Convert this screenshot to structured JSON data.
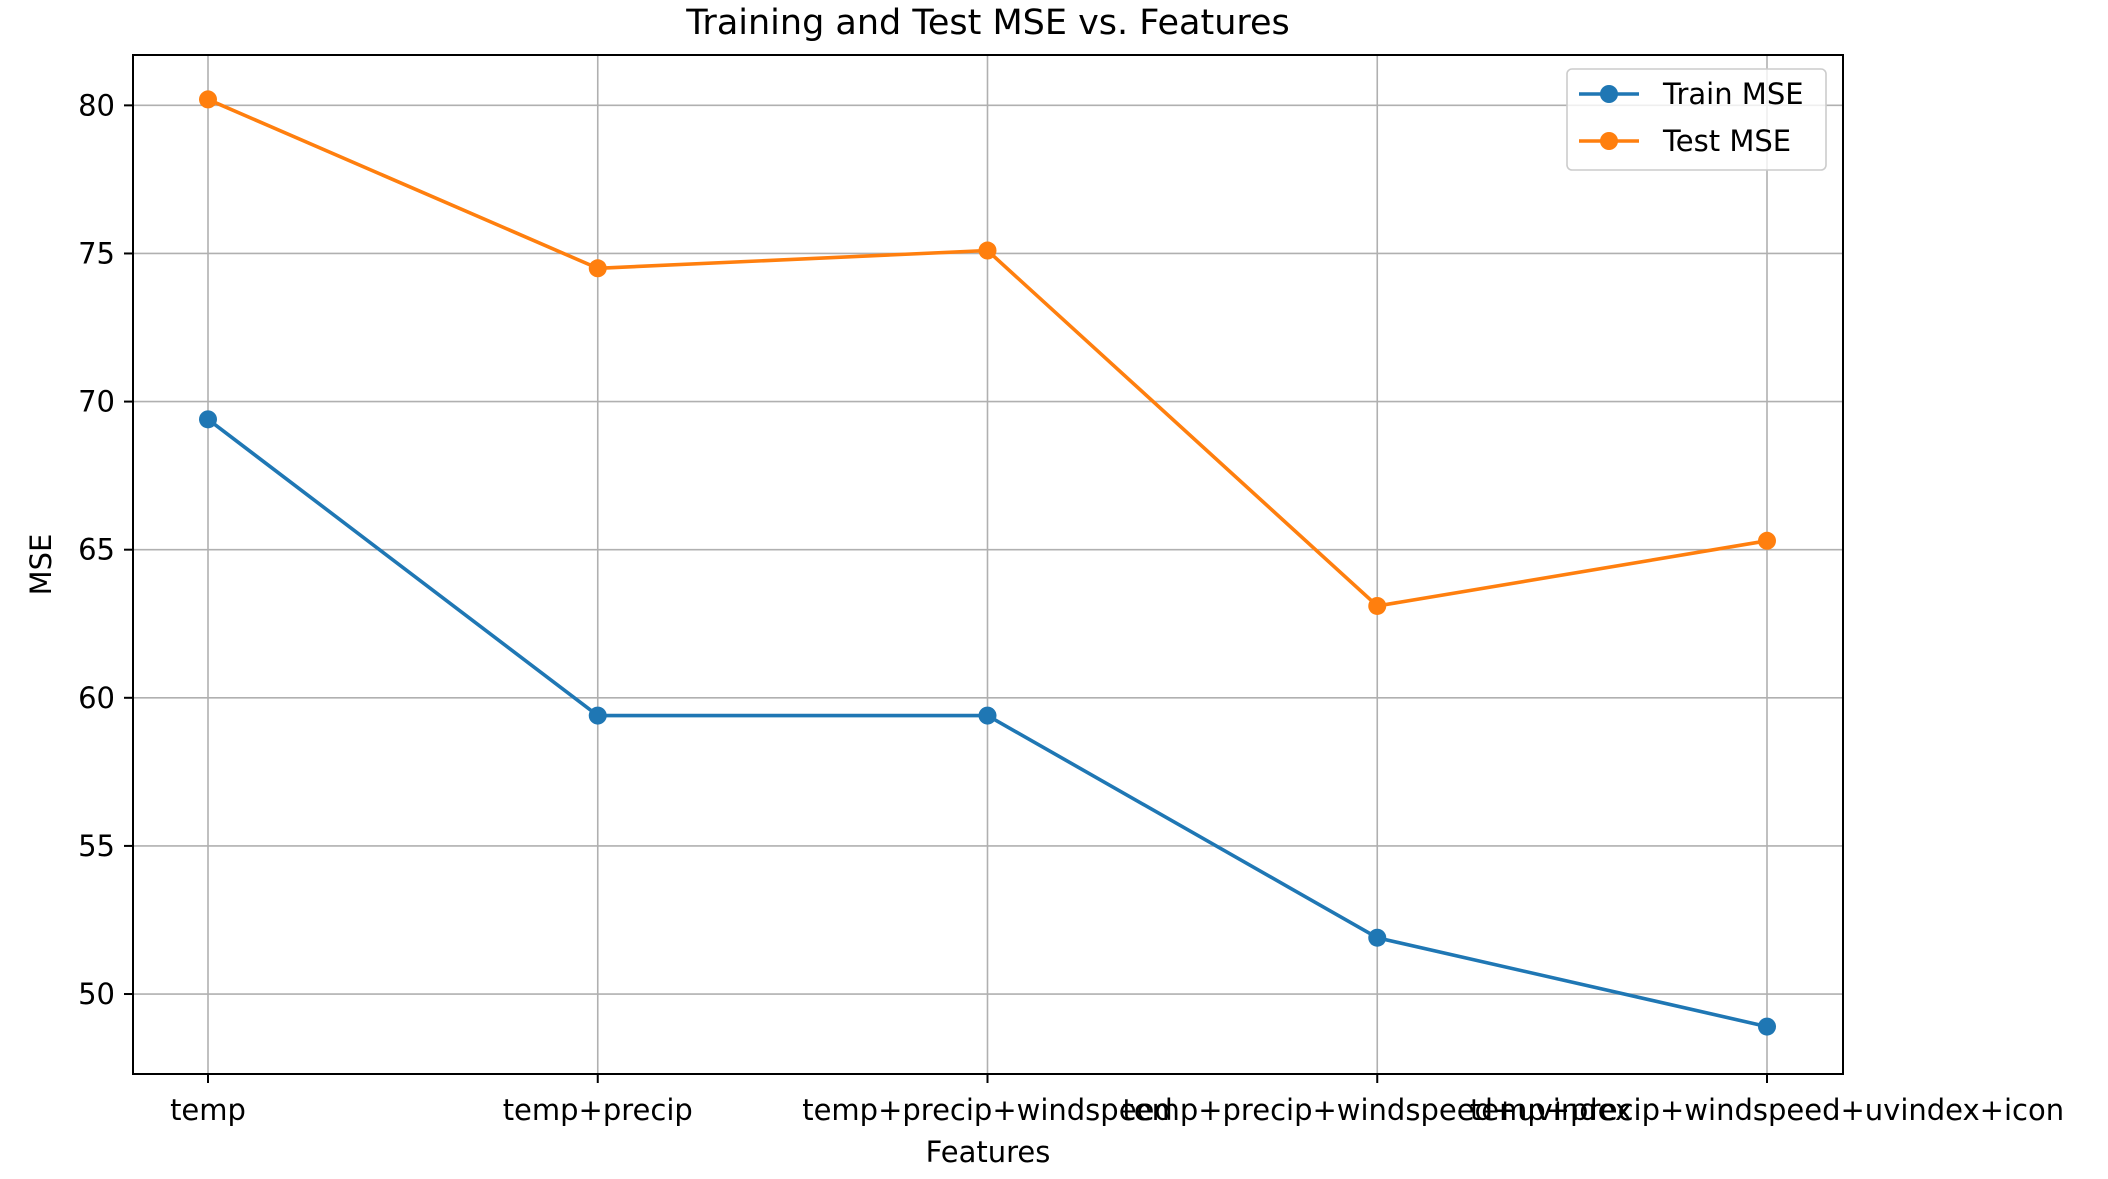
{
  "chart_data": {
    "type": "line",
    "title": "Training and Test MSE vs. Features",
    "xlabel": "Features",
    "ylabel": "MSE",
    "categories": [
      "temp",
      "temp+precip",
      "temp+precip+windspeed",
      "temp+precip+windspeed+uvindex",
      "temp+precip+windspeed+uvindex+icon"
    ],
    "yticks": [
      50,
      55,
      60,
      65,
      70,
      75,
      80
    ],
    "ylim": [
      47.3,
      81.7
    ],
    "grid": true,
    "legend_position": "upper right",
    "series": [
      {
        "name": "Train MSE",
        "color": "#1f77b4",
        "marker": "circle",
        "values": [
          69.4,
          59.4,
          59.4,
          51.9,
          48.9
        ]
      },
      {
        "name": "Test MSE",
        "color": "#ff7f0e",
        "marker": "circle",
        "values": [
          80.2,
          74.5,
          75.1,
          63.1,
          65.3
        ]
      }
    ]
  }
}
